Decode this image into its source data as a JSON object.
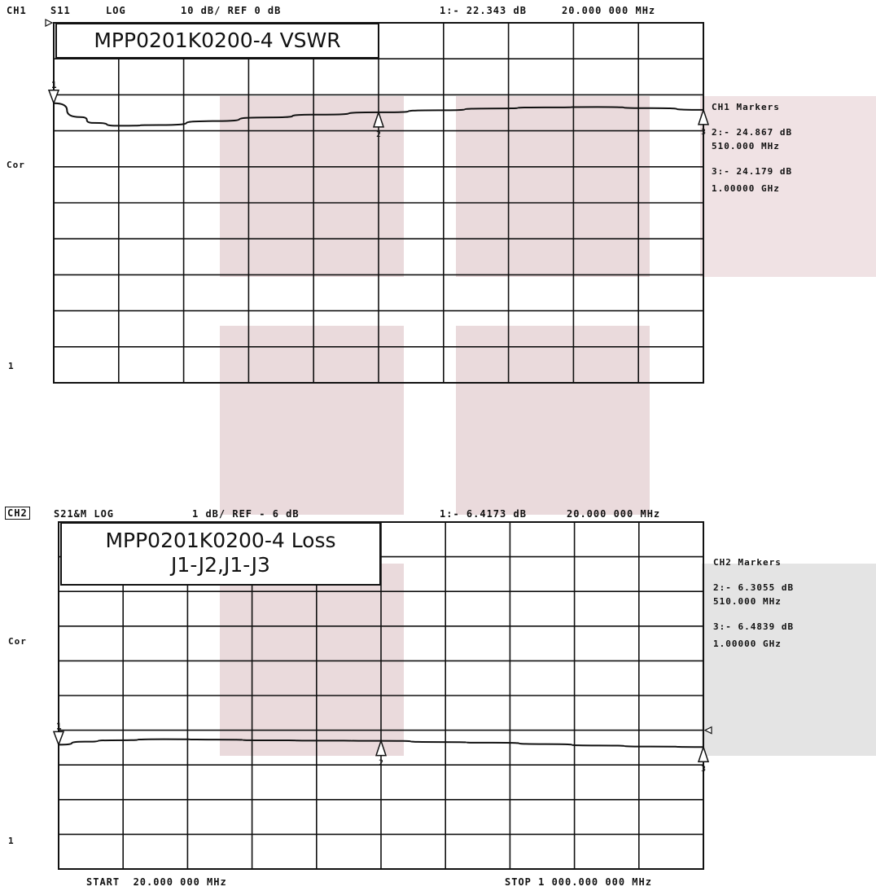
{
  "channel1": {
    "header": {
      "channel": "CH1",
      "param": "S11",
      "format": "LOG",
      "scale": "10 dB/ REF 0 dB",
      "marker_readout": "1:- 22.343 dB",
      "marker_freq": "20.000 000 MHz"
    },
    "title": "MPP0201K0200-4 VSWR",
    "label_cor": "Cor",
    "label_1": "1",
    "markers_title": "CH1 Markers",
    "markers": [
      {
        "line1": "2:- 24.867 dB",
        "line2": "510.000 MHz"
      },
      {
        "line1": "3:- 24.179 dB",
        "line2": "1.00000 GHz"
      }
    ]
  },
  "channel2": {
    "header": {
      "channel": "CH2",
      "param": "S21&M LOG",
      "scale": "1 dB/ REF - 6 dB",
      "marker_readout": "1:- 6.4173 dB",
      "marker_freq": "20.000 000 MHz"
    },
    "title_line1": "MPP0201K0200-4 Loss",
    "title_line2": "J1-J2,J1-J3",
    "label_cor": "Cor",
    "label_1": "1",
    "markers_title": "CH2 Markers",
    "markers": [
      {
        "line1": "2:- 6.3055 dB",
        "line2": "510.000 MHz"
      },
      {
        "line1": "3:- 6.4839 dB",
        "line2": "1.00000 GHz"
      }
    ]
  },
  "footer": {
    "start": "START  20.000 000 MHz",
    "stop": "STOP 1 000.000 000 MHz"
  },
  "colors": {
    "grid": "#111111",
    "trace": "#111111",
    "watermark_pink": "#eadadc",
    "panel_gray": "#e4e4e4"
  },
  "chart_data": [
    {
      "type": "line",
      "x": [
        20,
        60,
        80,
        120,
        180,
        260,
        340,
        420,
        510,
        600,
        680,
        760,
        840,
        920,
        1000
      ],
      "series": [
        {
          "values": [
            -22.343,
            -26.2,
            -27.8,
            -28.6,
            -28.4,
            -27.3,
            -26.3,
            -25.5,
            -24.867,
            -24.3,
            -23.8,
            -23.5,
            -23.4,
            -23.7,
            -24.179
          ]
        }
      ],
      "markers": [
        {
          "id": "1",
          "x": 20,
          "y": -22.343
        },
        {
          "id": "2",
          "x": 510,
          "y": -24.867
        },
        {
          "id": "3",
          "x": 1000,
          "y": -24.179
        }
      ],
      "xlim": [
        20,
        1000
      ],
      "ylim": [
        -100,
        0
      ],
      "ref": 0,
      "grid": true
    },
    {
      "type": "line",
      "x": [
        20,
        60,
        100,
        180,
        260,
        340,
        420,
        510,
        600,
        680,
        760,
        840,
        920,
        1000
      ],
      "series": [
        {
          "values": [
            -6.4173,
            -6.33,
            -6.29,
            -6.26,
            -6.27,
            -6.29,
            -6.3,
            -6.3055,
            -6.34,
            -6.36,
            -6.4,
            -6.44,
            -6.47,
            -6.4839
          ]
        }
      ],
      "markers": [
        {
          "id": "1",
          "x": 20,
          "y": -6.4173
        },
        {
          "id": "2",
          "x": 510,
          "y": -6.3055
        },
        {
          "id": "3",
          "x": 1000,
          "y": -6.4839
        }
      ],
      "xlim": [
        20,
        1000
      ],
      "ylim": [
        -10,
        0
      ],
      "ref": -6,
      "grid": true
    }
  ]
}
